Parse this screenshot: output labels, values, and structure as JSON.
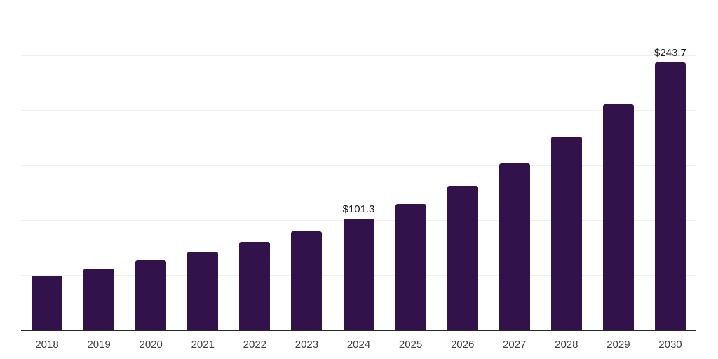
{
  "chart_data": {
    "type": "bar",
    "title": "",
    "xlabel": "",
    "ylabel": "",
    "categories": [
      "2018",
      "2019",
      "2020",
      "2021",
      "2022",
      "2023",
      "2024",
      "2025",
      "2026",
      "2027",
      "2028",
      "2029",
      "2030"
    ],
    "values": [
      49.4,
      55.9,
      63.3,
      70.9,
      79.7,
      89.4,
      101.3,
      114.8,
      131.3,
      151.8,
      175.8,
      205.6,
      243.7
    ],
    "data_labels": {
      "2024": "$101.3",
      "2030": "$243.7"
    },
    "ylim": [
      0,
      300
    ],
    "gridline_values": [
      50,
      100,
      150,
      200,
      250,
      300
    ],
    "grid_on": true,
    "legend": "none",
    "y_axis_labels_shown": false,
    "bar_color": "#31124b",
    "axis_line_color": "#262626",
    "gridline_color": "#efefef",
    "tick_label_color": "#404040",
    "value_label_color": "#1a1a1a",
    "background_color": "#ffffff"
  }
}
